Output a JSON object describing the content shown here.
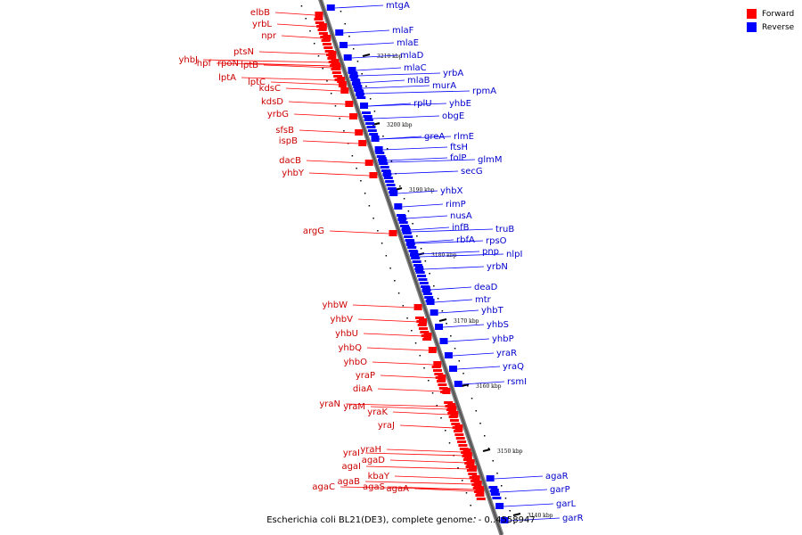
{
  "legend": {
    "items": [
      {
        "label": "Forward",
        "color": "#ff0000"
      },
      {
        "label": "Reverse",
        "color": "#0000ff"
      }
    ]
  },
  "caption": "Escherichia coli BL21(DE3), complete genome. - 0..4558947",
  "colors": {
    "forward": "#ff0000",
    "reverse": "#0000ff",
    "axis": "#555555"
  },
  "kbp_ticks": [
    "3210 kbp",
    "3200 kbp",
    "3190 kbp",
    "3180 kbp",
    "3170 kbp",
    "3160 kbp",
    "3150 kbp",
    "3140 kbp"
  ],
  "forward_genes": [
    "elbB",
    "yrbL",
    "npr",
    "ptsN",
    "hpf",
    "rpoN",
    "lptB",
    "yhbJ",
    "lptA",
    "lptC",
    "kdsC",
    "kdsD",
    "yrbG",
    "sfsB",
    "ispB",
    "dacB",
    "yhbY",
    "argG",
    "yhbW",
    "yhbV",
    "yhbU",
    "yhbQ",
    "yhbO",
    "yraP",
    "diaA",
    "yraN",
    "yraM",
    "yraK",
    "yraJ",
    "yraI",
    "yraH",
    "agaI",
    "agaD",
    "kbaY",
    "agaB",
    "agaC",
    "agaS",
    "agaA"
  ],
  "reverse_genes": [
    "mtgA",
    "mlaF",
    "mlaE",
    "mlaD",
    "mlaC",
    "mlaB",
    "yrbA",
    "murA",
    "rpmA",
    "rplU",
    "yhbE",
    "obgE",
    "greA",
    "rlmE",
    "ftsH",
    "folP",
    "glmM",
    "secG",
    "yhbX",
    "rimP",
    "nusA",
    "infB",
    "rbfA",
    "truB",
    "rpsO",
    "pnp",
    "nlpI",
    "yrbN",
    "deaD",
    "mtr",
    "yhbT",
    "yhbS",
    "yhbP",
    "yraR",
    "yraQ",
    "rsmI",
    "agaR",
    "garP",
    "garL",
    "garR"
  ]
}
